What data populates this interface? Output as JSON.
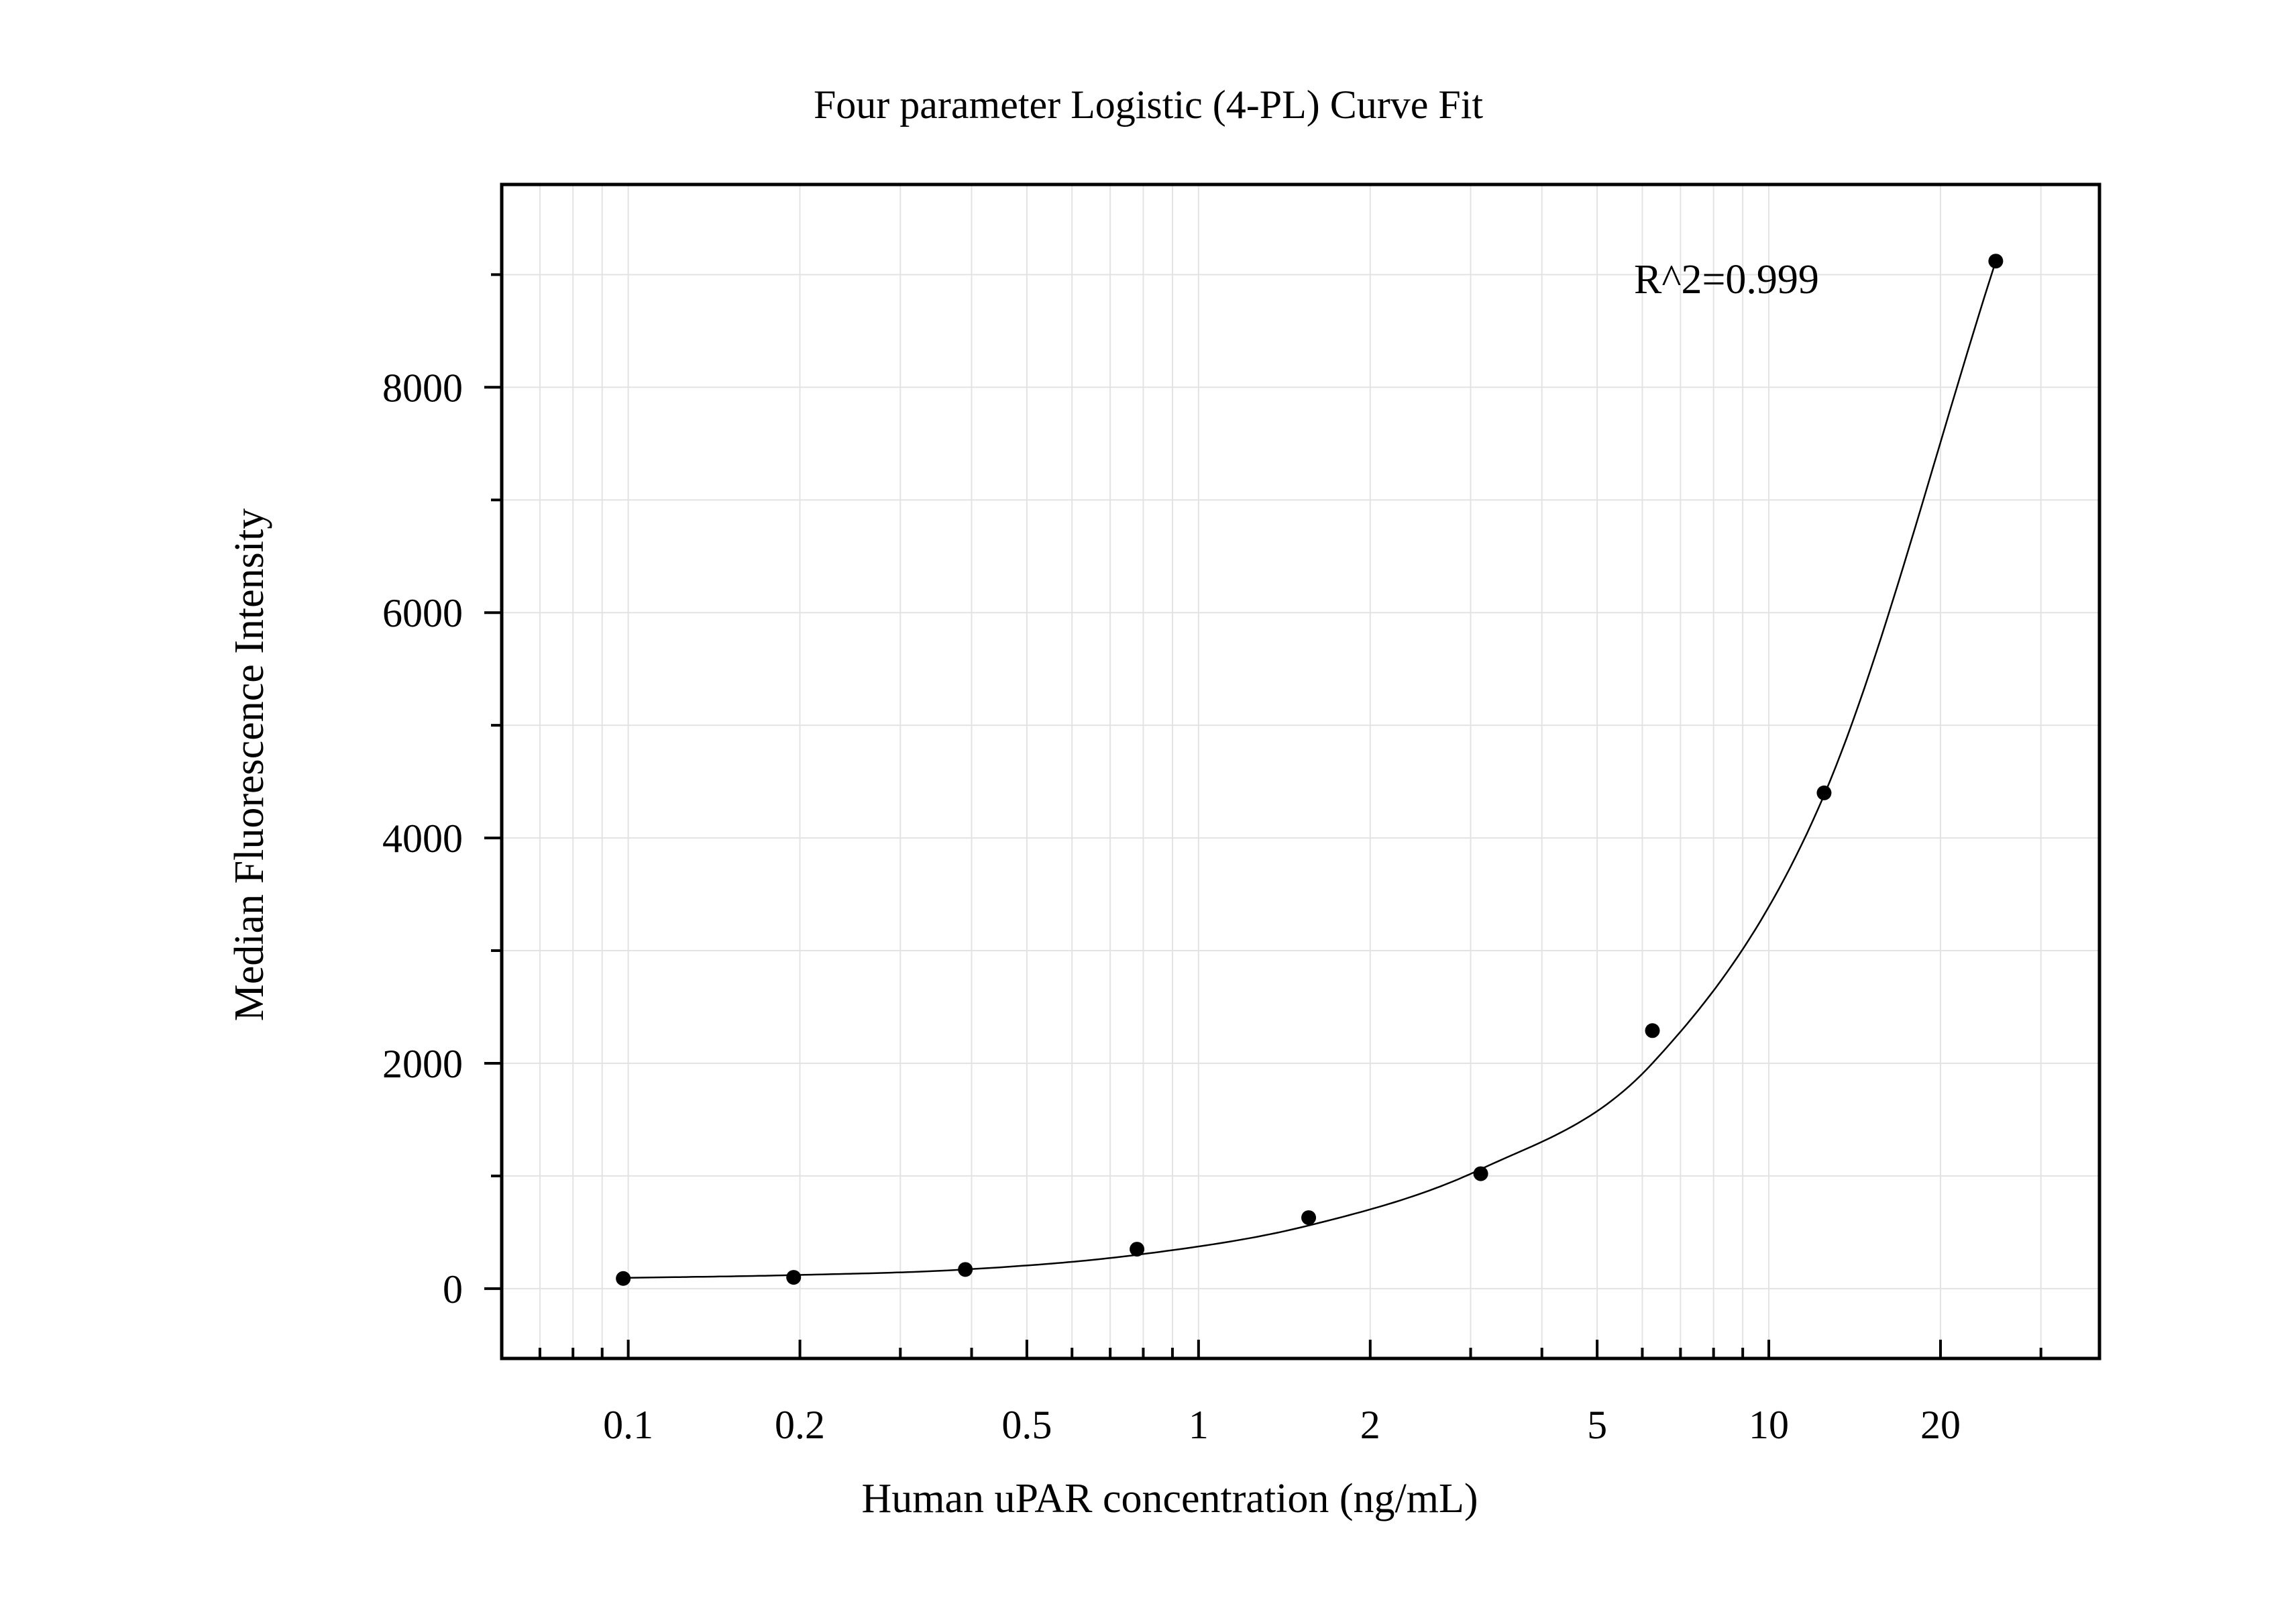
{
  "chart_data": {
    "type": "scatter",
    "title": "Four parameter Logistic (4-PL) Curve Fit",
    "xlabel": "Human uPAR concentration (ng/mL)",
    "ylabel": "Median Fluorescence Intensity",
    "x_scale": "log",
    "xlim": [
      0.06,
      38
    ],
    "ylim": [
      -620,
      9800
    ],
    "x_ticks": [
      {
        "value": 0.1,
        "label": "0.1"
      },
      {
        "value": 0.2,
        "label": "0.2"
      },
      {
        "value": 0.5,
        "label": "0.5"
      },
      {
        "value": 1,
        "label": "1"
      },
      {
        "value": 2,
        "label": "2"
      },
      {
        "value": 5,
        "label": "5"
      },
      {
        "value": 10,
        "label": "10"
      },
      {
        "value": 20,
        "label": "20"
      }
    ],
    "y_ticks": [
      {
        "value": 0,
        "label": "0"
      },
      {
        "value": 2000,
        "label": "2000"
      },
      {
        "value": 4000,
        "label": "4000"
      },
      {
        "value": 6000,
        "label": "6000"
      },
      {
        "value": 8000,
        "label": "8000"
      }
    ],
    "grid": true,
    "series": [
      {
        "x": [
          0.098,
          0.195,
          0.39,
          0.78,
          1.56,
          3.125,
          6.25,
          12.5,
          25
        ],
        "y": [
          90,
          100,
          170,
          350,
          630,
          1020,
          2290,
          4400,
          9120
        ]
      }
    ],
    "fit": {
      "model": "4PL",
      "x": [
        0.098,
        0.195,
        0.39,
        0.78,
        1.56,
        3.125,
        6.25,
        12.5,
        25
      ],
      "y": [
        95,
        120,
        170,
        300,
        560,
        1060,
        2000,
        4380,
        9120
      ]
    },
    "annotations": [
      {
        "text": "R^2=0.999"
      }
    ],
    "colors": {
      "marker": "#000000",
      "line": "#000000",
      "grid": "#e3e3e3",
      "frame": "#000000"
    }
  }
}
